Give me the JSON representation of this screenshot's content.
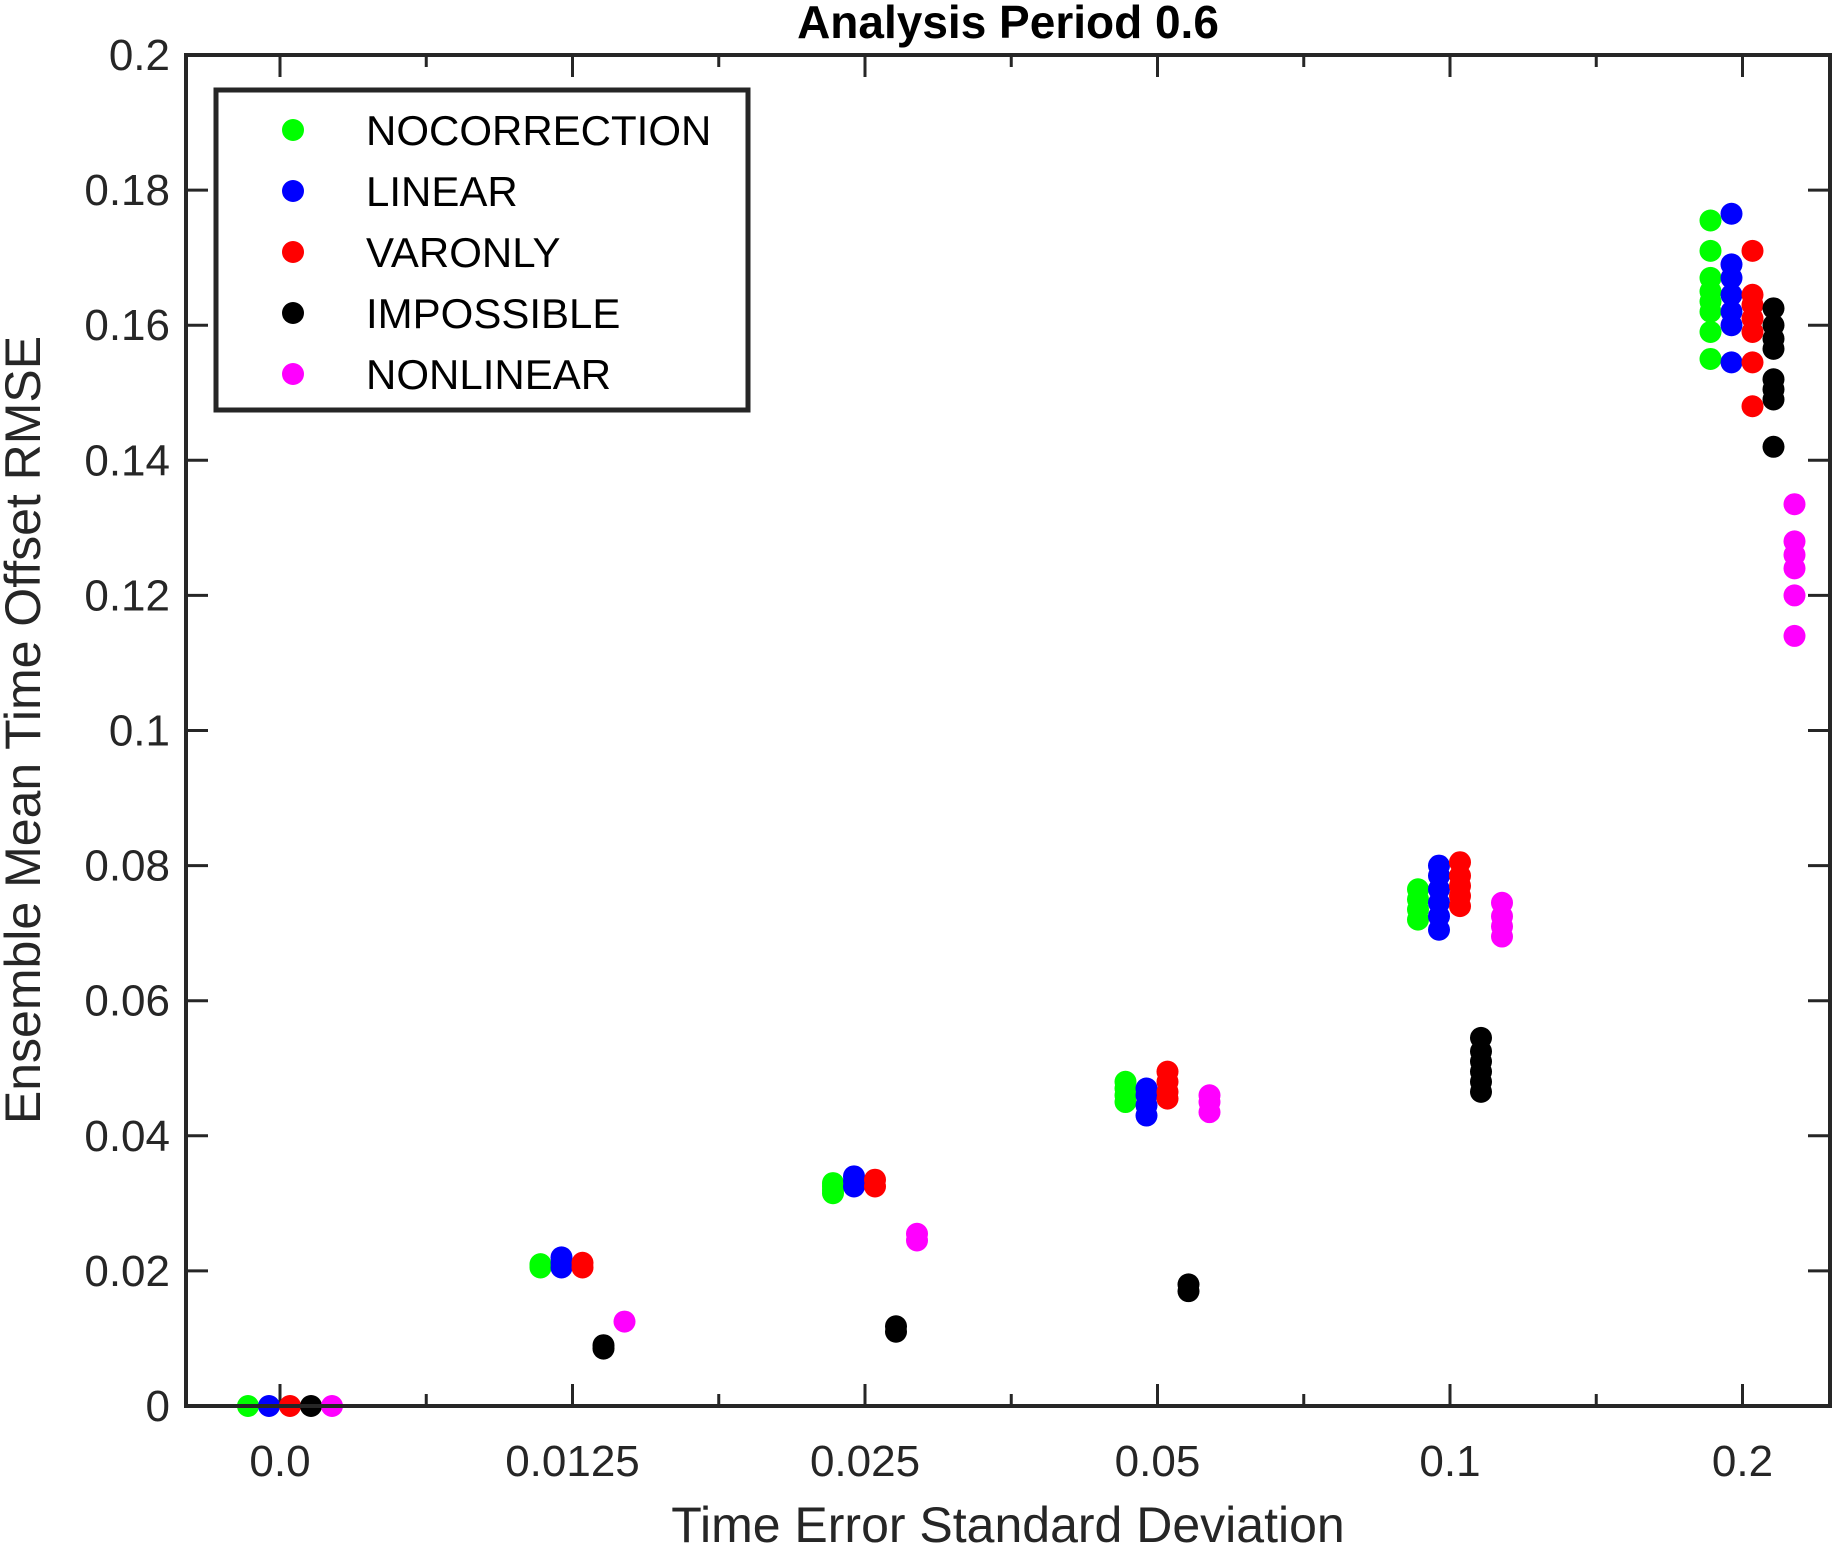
{
  "chart_data": {
    "type": "scatter",
    "title": "Analysis Period 0.6",
    "xlabel": "Time Error Standard Deviation",
    "ylabel": "Ensemble Mean Time Offset RMSE",
    "categories": [
      "0.0",
      "0.0125",
      "0.025",
      "0.05",
      "0.1",
      "0.2"
    ],
    "ylim": [
      0,
      0.2
    ],
    "yticks": [
      "0",
      "0.02",
      "0.04",
      "0.06",
      "0.08",
      "0.1",
      "0.12",
      "0.14",
      "0.16",
      "0.18",
      "0.2"
    ],
    "grid": false,
    "legend_position": "top-left",
    "series": [
      {
        "name": "NOCORRECTION",
        "color": "#00ff00",
        "points_by_category": [
          [
            0.0
          ],
          [
            0.0205,
            0.0208,
            0.021
          ],
          [
            0.0315,
            0.032,
            0.0325,
            0.033
          ],
          [
            0.045,
            0.046,
            0.047,
            0.048
          ],
          [
            0.072,
            0.0735,
            0.075,
            0.0765
          ],
          [
            0.155,
            0.159,
            0.162,
            0.1635,
            0.165,
            0.167,
            0.171,
            0.1755
          ]
        ]
      },
      {
        "name": "LINEAR",
        "color": "#0000ff",
        "points_by_category": [
          [
            0.0
          ],
          [
            0.0205,
            0.0212,
            0.022
          ],
          [
            0.0325,
            0.0333,
            0.034
          ],
          [
            0.043,
            0.0445,
            0.046,
            0.047
          ],
          [
            0.0705,
            0.0725,
            0.0745,
            0.0765,
            0.0785,
            0.08
          ],
          [
            0.1545,
            0.16,
            0.162,
            0.1645,
            0.167,
            0.169,
            0.1765
          ]
        ]
      },
      {
        "name": "VARONLY",
        "color": "#ff0000",
        "points_by_category": [
          [
            0.0
          ],
          [
            0.0205,
            0.0212
          ],
          [
            0.0325,
            0.0335
          ],
          [
            0.0455,
            0.0465,
            0.048,
            0.0495
          ],
          [
            0.074,
            0.0755,
            0.077,
            0.0785,
            0.0805
          ],
          [
            0.148,
            0.1545,
            0.159,
            0.161,
            0.163,
            0.1645,
            0.171
          ]
        ]
      },
      {
        "name": "IMPOSSIBLE",
        "color": "#000000",
        "points_by_category": [
          [
            0.0
          ],
          [
            0.0085,
            0.009
          ],
          [
            0.011,
            0.0118
          ],
          [
            0.017,
            0.018
          ],
          [
            0.0465,
            0.048,
            0.0495,
            0.051,
            0.0525,
            0.0545
          ],
          [
            0.142,
            0.149,
            0.1505,
            0.152,
            0.1565,
            0.158,
            0.16,
            0.1625
          ]
        ]
      },
      {
        "name": "NONLINEAR",
        "color": "#ff00ff",
        "points_by_category": [
          [
            0.0
          ],
          [
            0.0125
          ],
          [
            0.0245,
            0.0255
          ],
          [
            0.0435,
            0.045,
            0.046
          ],
          [
            0.0695,
            0.071,
            0.0725,
            0.0745
          ],
          [
            0.114,
            0.12,
            0.124,
            0.126,
            0.128,
            0.1335
          ]
        ]
      }
    ]
  }
}
